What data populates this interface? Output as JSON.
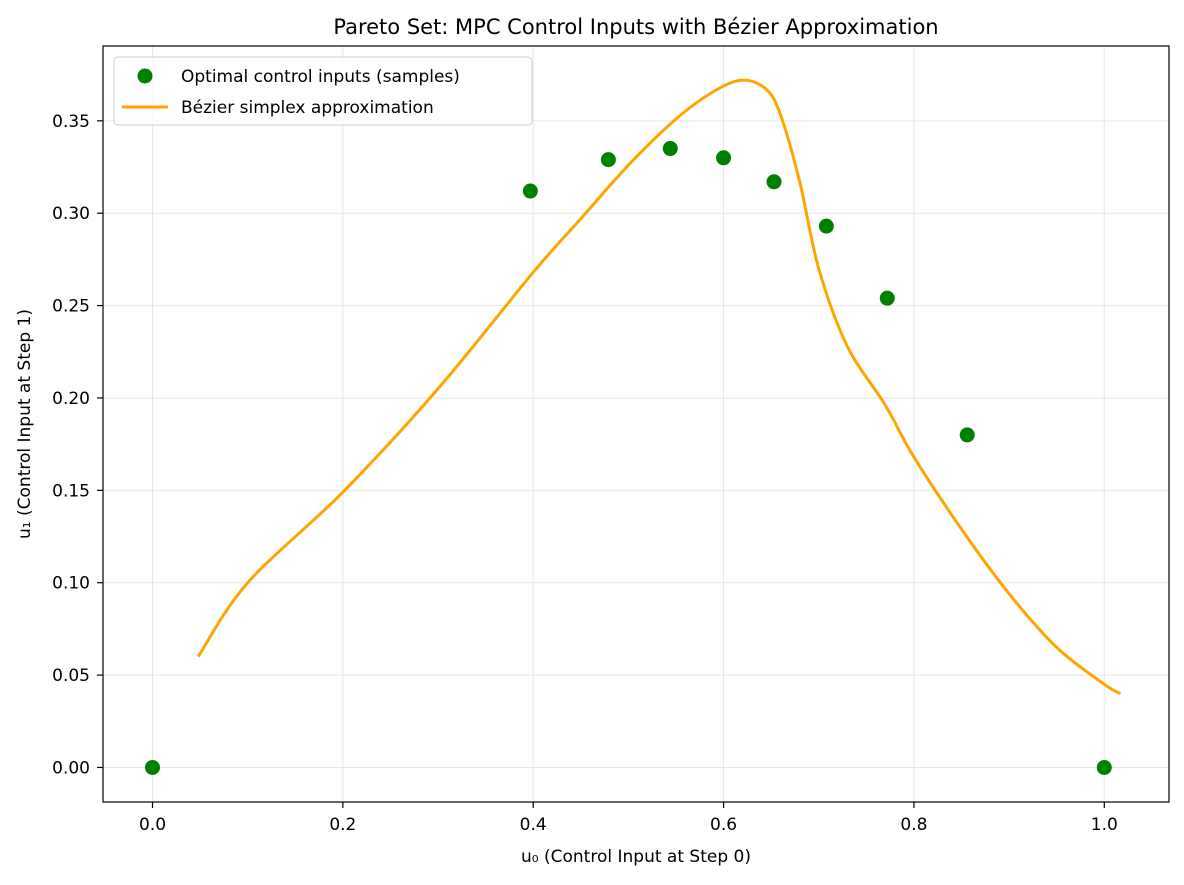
{
  "chart_data": {
    "type": "scatter",
    "title": "Pareto Set: MPC Control Inputs with Bézier Approximation",
    "xlabel": "u₀ (Control Input at Step 0)",
    "ylabel": "u₁ (Control Input at Step 1)",
    "xlim": [
      -0.052,
      1.068
    ],
    "ylim": [
      -0.0187,
      0.3905
    ],
    "xticks": [
      0.0,
      0.2,
      0.4,
      0.6,
      0.8,
      1.0
    ],
    "xtick_labels": [
      "0.0",
      "0.2",
      "0.4",
      "0.6",
      "0.8",
      "1.0"
    ],
    "yticks": [
      0.0,
      0.05,
      0.1,
      0.15,
      0.2,
      0.25,
      0.3,
      0.35
    ],
    "ytick_labels": [
      "0.00",
      "0.05",
      "0.10",
      "0.15",
      "0.20",
      "0.25",
      "0.30",
      "0.35"
    ],
    "grid": true,
    "legend_position": "top-left",
    "series": [
      {
        "name": "Optimal control inputs (samples)",
        "kind": "scatter",
        "color": "#008000",
        "x": [
          0.0,
          0.397,
          0.479,
          0.544,
          0.6,
          0.653,
          0.708,
          0.772,
          0.856,
          1.0
        ],
        "y": [
          0.0,
          0.312,
          0.329,
          0.335,
          0.33,
          0.317,
          0.293,
          0.254,
          0.18,
          0.0
        ]
      },
      {
        "name": "Bézier simplex approximation",
        "kind": "line",
        "color": "#FFA500",
        "x": [
          0.048,
          0.1,
          0.2,
          0.3,
          0.4,
          0.45,
          0.5,
          0.55,
          0.59,
          0.62,
          0.645,
          0.66,
          0.68,
          0.7,
          0.73,
          0.77,
          0.8,
          0.85,
          0.9,
          0.95,
          1.0,
          1.017
        ],
        "y": [
          0.06,
          0.1,
          0.149,
          0.205,
          0.268,
          0.297,
          0.326,
          0.351,
          0.366,
          0.372,
          0.367,
          0.353,
          0.317,
          0.27,
          0.228,
          0.196,
          0.168,
          0.129,
          0.094,
          0.065,
          0.045,
          0.04
        ]
      }
    ]
  }
}
